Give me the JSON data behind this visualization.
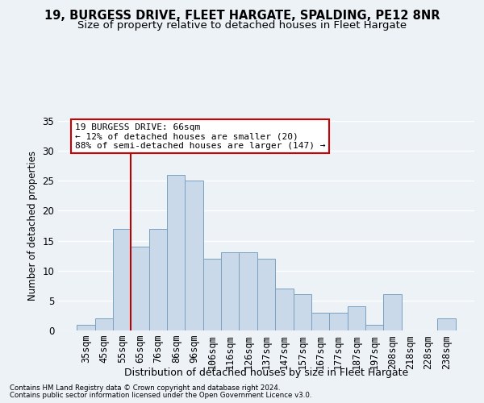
{
  "title1": "19, BURGESS DRIVE, FLEET HARGATE, SPALDING, PE12 8NR",
  "title2": "Size of property relative to detached houses in Fleet Hargate",
  "xlabel": "Distribution of detached houses by size in Fleet Hargate",
  "ylabel": "Number of detached properties",
  "footnote1": "Contains HM Land Registry data © Crown copyright and database right 2024.",
  "footnote2": "Contains public sector information licensed under the Open Government Licence v3.0.",
  "bin_labels": [
    "35sqm",
    "45sqm",
    "55sqm",
    "65sqm",
    "76sqm",
    "86sqm",
    "96sqm",
    "106sqm",
    "116sqm",
    "126sqm",
    "137sqm",
    "147sqm",
    "157sqm",
    "167sqm",
    "177sqm",
    "187sqm",
    "197sqm",
    "208sqm",
    "218sqm",
    "228sqm",
    "238sqm"
  ],
  "bar_values": [
    1,
    2,
    17,
    14,
    17,
    26,
    25,
    12,
    13,
    13,
    12,
    7,
    6,
    3,
    3,
    4,
    1,
    6,
    0,
    0,
    2
  ],
  "bar_color": "#c9d9ea",
  "bar_edge_color": "#7aa0c0",
  "vline_color": "#bb0000",
  "annotation_text": "19 BURGESS DRIVE: 66sqm\n← 12% of detached houses are smaller (20)\n88% of semi-detached houses are larger (147) →",
  "annotation_box_color": "#ffffff",
  "annotation_box_edge": "#cc0000",
  "ylim": [
    0,
    35
  ],
  "yticks": [
    0,
    5,
    10,
    15,
    20,
    25,
    30,
    35
  ],
  "bg_color": "#edf2f7",
  "grid_color": "#ffffff",
  "title_fontsize": 10.5,
  "subtitle_fontsize": 9.5
}
